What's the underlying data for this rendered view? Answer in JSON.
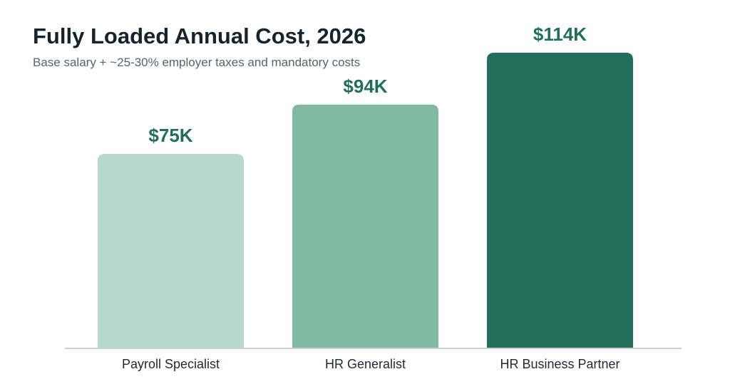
{
  "chart_data": {
    "type": "bar",
    "title": "Fully Loaded Annual Cost, 2026",
    "subtitle": "Base salary + ~25-30% employer taxes and mandatory costs",
    "xlabel": "",
    "ylabel": "",
    "categories": [
      "Payroll Specialist",
      "HR Generalist",
      "HR Business Partner"
    ],
    "values": [
      75,
      94,
      114
    ],
    "value_labels": [
      "$75K",
      "$94K",
      "$114K"
    ],
    "unit": "K USD",
    "ylim": [
      0,
      114
    ],
    "grid": false,
    "legend": "none",
    "bar_colors": [
      "#b6d9cd",
      "#82b9a3",
      "#216e5c"
    ]
  },
  "colors": {
    "title": "#13242e",
    "subtitle": "#56646d",
    "value_label": "#216e5c",
    "category_label": "#1f2a30",
    "baseline": "#c9cfcf"
  }
}
